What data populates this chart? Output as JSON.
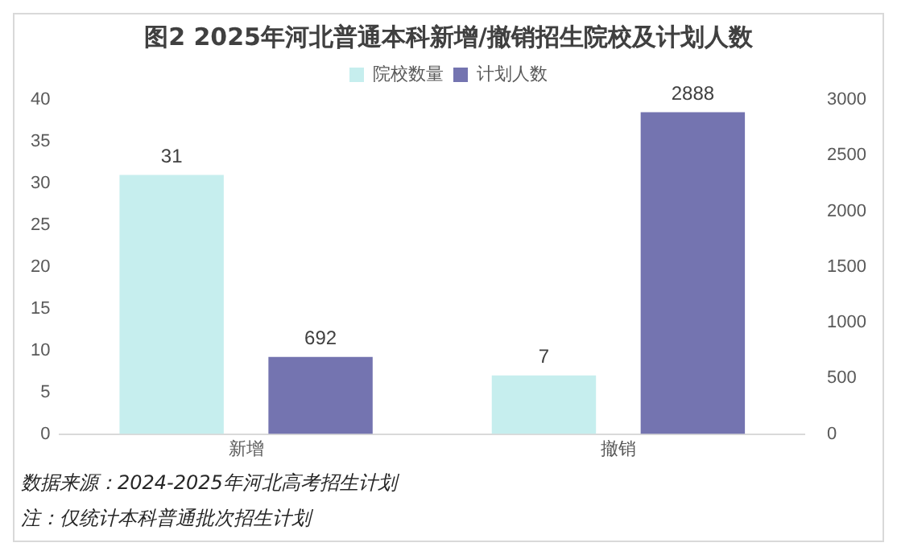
{
  "chart_data": {
    "type": "bar",
    "title": "图2 2025年河北普通本科新增/撤销招生院校及计划人数",
    "categories": [
      "新增",
      "撤销"
    ],
    "series": [
      {
        "name": "院校数量",
        "color": "#c6eeee",
        "values": [
          31,
          7
        ]
      },
      {
        "name": "计划人数",
        "color": "#7474b0",
        "values": [
          692,
          2888
        ],
        "axis": "y2"
      }
    ],
    "ylim": [
      0,
      40
    ],
    "yticks": [
      0,
      5,
      10,
      15,
      20,
      25,
      30,
      35,
      40
    ],
    "y2lim": [
      0,
      3000
    ],
    "y2ticks": [
      0,
      500,
      1000,
      1500,
      2000,
      2500,
      3000
    ],
    "data_labels": true,
    "legend": "top",
    "grid": false,
    "annotations": [
      "数据来源：2024-2025年河北高考招生计划",
      "注：仅统计本科普通批次招生计划"
    ]
  }
}
